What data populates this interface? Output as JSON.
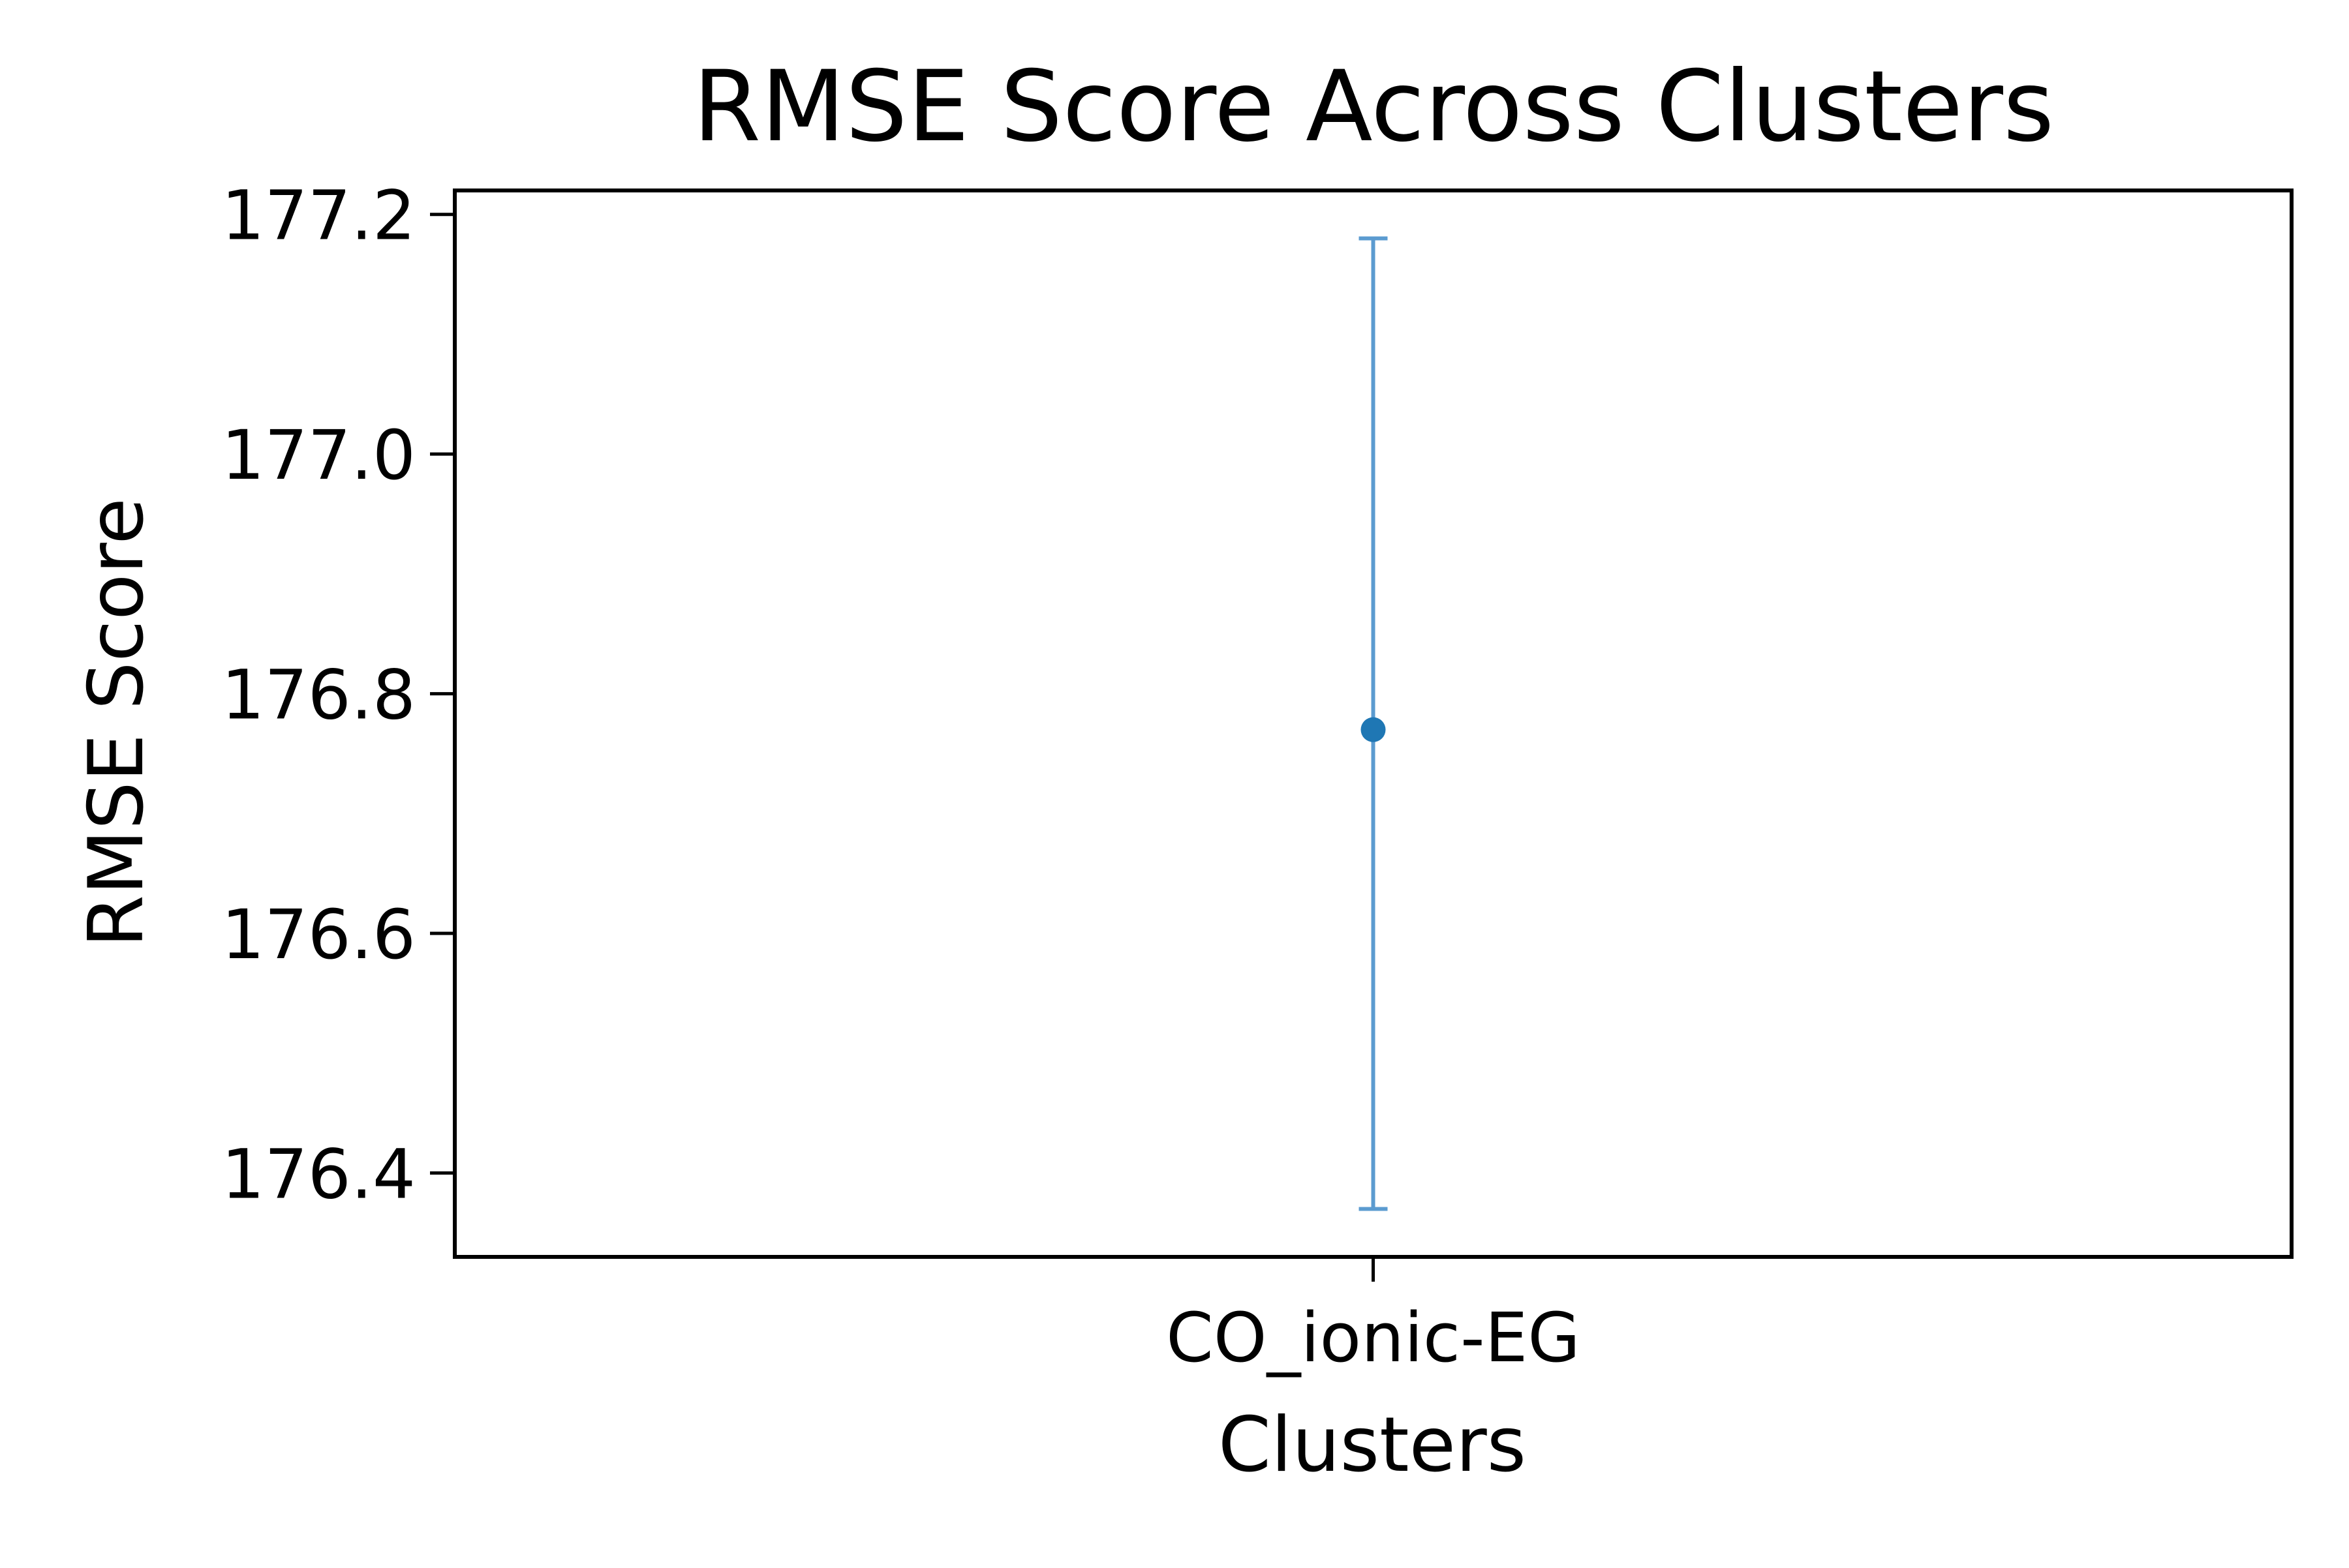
{
  "chart_data": {
    "type": "scatter",
    "title": "RMSE Score Across Clusters",
    "xlabel": "Clusters",
    "ylabel": "RMSE Score",
    "categories": [
      "CO_ionic-EG"
    ],
    "series": [
      {
        "values": [
          176.77
        ],
        "error_low": [
          176.37
        ],
        "error_high": [
          177.18
        ],
        "color": "#1f77b4",
        "errorbar_color": "#5b9bd0"
      }
    ],
    "yticks": [
      176.4,
      176.6,
      176.8,
      177.0,
      177.2
    ],
    "ytick_labels": [
      "176.4",
      "176.6",
      "176.8",
      "177.0",
      "177.2"
    ],
    "ylim": [
      176.33,
      177.22
    ],
    "grid": false,
    "legend": "none"
  }
}
